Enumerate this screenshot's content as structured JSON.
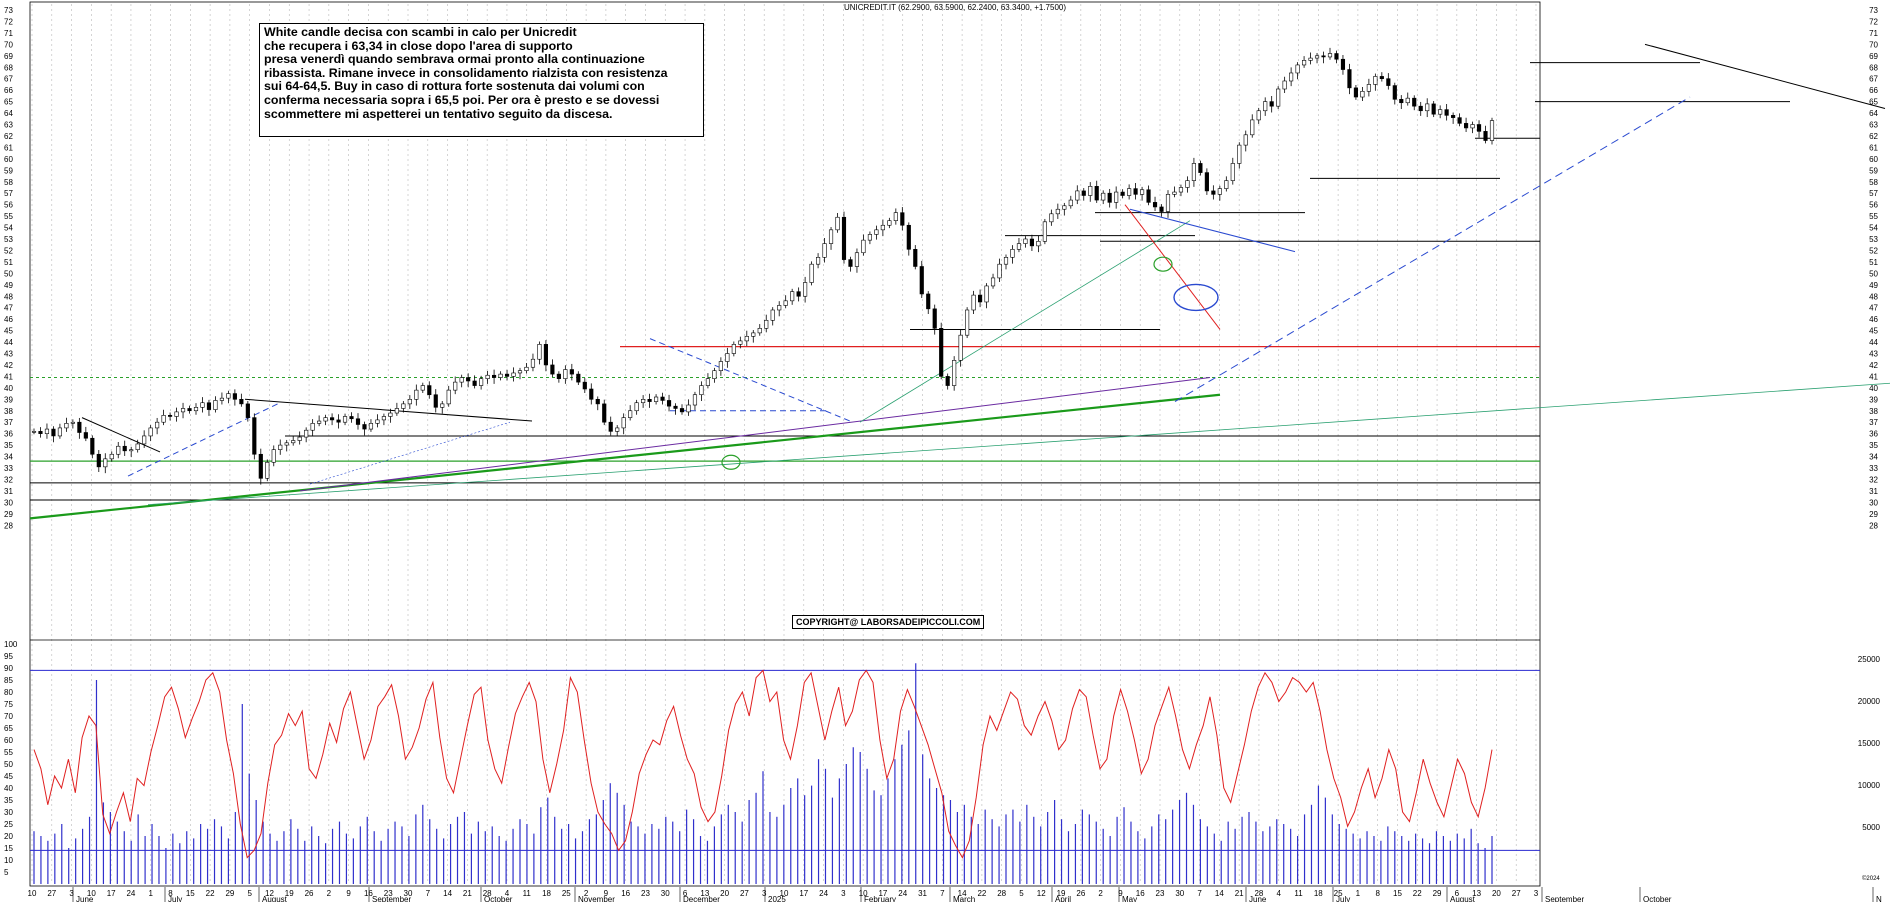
{
  "chart_data": [
    {
      "type": "candlestick",
      "title": "UNICREDIT.IT (62.2900, 63.5900, 62.2400, 63.3400, +1.7500)",
      "ylim": [
        28,
        73
      ],
      "y_ticks": [
        28,
        29,
        30,
        31,
        32,
        33,
        34,
        35,
        36,
        37,
        38,
        39,
        40,
        41,
        42,
        43,
        44,
        45,
        46,
        47,
        48,
        49,
        50,
        51,
        52,
        53,
        54,
        55,
        56,
        57,
        58,
        59,
        60,
        61,
        62,
        63,
        64,
        65,
        66,
        67,
        68,
        69,
        70,
        71,
        72,
        73
      ],
      "grid": "vertical dotted",
      "close_series": [
        36.2,
        36.0,
        36.4,
        35.8,
        36.5,
        36.9,
        37.0,
        36.1,
        35.6,
        34.2,
        33.1,
        33.8,
        34.2,
        34.9,
        34.5,
        34.6,
        35.1,
        35.8,
        36.5,
        37.0,
        37.6,
        37.5,
        37.9,
        38.2,
        38.0,
        38.3,
        38.7,
        38.1,
        38.9,
        39.1,
        39.5,
        39.0,
        38.6,
        37.4,
        34.2,
        32.1,
        33.5,
        34.6,
        35.0,
        35.2,
        35.4,
        35.7,
        36.3,
        36.9,
        37.1,
        37.4,
        37.2,
        37.0,
        37.5,
        37.3,
        36.8,
        36.4,
        36.9,
        37.2,
        37.5,
        37.8,
        38.2,
        38.6,
        39.0,
        39.8,
        40.2,
        39.4,
        38.3,
        38.6,
        39.8,
        40.5,
        40.9,
        40.6,
        40.2,
        40.8,
        41.1,
        40.9,
        41.2,
        41.0,
        41.3,
        41.5,
        41.8,
        42.5,
        43.8,
        42.0,
        41.2,
        40.8,
        41.6,
        41.2,
        40.5,
        39.9,
        39.0,
        38.6,
        37.0,
        36.2,
        36.5,
        37.4,
        38.0,
        38.7,
        39.0,
        38.8,
        39.2,
        38.9,
        38.4,
        38.2,
        37.9,
        38.5,
        39.4,
        40.2,
        40.8,
        41.5,
        42.3,
        43.0,
        43.8,
        44.1,
        44.5,
        44.8,
        45.2,
        45.9,
        46.8,
        47.2,
        47.6,
        48.4,
        48.0,
        49.2,
        50.8,
        51.4,
        52.6,
        53.8,
        54.9,
        51.2,
        50.6,
        51.8,
        52.9,
        53.4,
        53.8,
        54.2,
        54.6,
        55.3,
        54.2,
        52.1,
        50.6,
        48.2,
        46.9,
        45.2,
        41.0,
        40.2,
        42.4,
        44.6,
        46.8,
        48.1,
        47.5,
        48.9,
        49.6,
        50.8,
        51.4,
        52.1,
        52.6,
        53.0,
        52.4,
        52.8,
        54.5,
        55.2,
        55.6,
        55.9,
        56.4,
        57.2,
        56.8,
        57.6,
        56.4,
        57.0,
        56.2,
        57.1,
        56.8,
        57.4,
        56.9,
        57.3,
        56.2,
        55.8,
        55.4,
        56.9,
        57.1,
        57.5,
        58.1,
        59.6,
        58.8,
        57.2,
        56.9,
        57.4,
        58.1,
        59.6,
        61.2,
        62.1,
        63.4,
        64.2,
        65.0,
        64.6,
        66.1,
        66.8,
        67.5,
        68.2,
        68.6,
        68.8,
        69.0,
        68.9,
        69.2,
        68.7,
        67.8,
        66.2,
        65.4,
        65.9,
        66.5,
        67.2,
        67.0,
        66.4,
        65.2,
        64.9,
        65.3,
        64.6,
        64.2,
        64.8,
        63.9,
        64.3,
        63.8,
        63.6,
        63.1,
        62.7,
        63.0,
        62.4,
        61.6,
        63.34
      ]
    },
    {
      "type": "line+bar",
      "ylim_left": [
        0,
        100
      ],
      "y_ticks_left": [
        5,
        10,
        15,
        20,
        25,
        30,
        35,
        40,
        45,
        50,
        55,
        60,
        65,
        70,
        75,
        80,
        85,
        90,
        95,
        100
      ],
      "y_ticks_right": [
        "5000",
        "10000",
        "15000",
        "20000",
        "25000"
      ],
      "upper_band": 89,
      "lower_band": 14,
      "oscillator_color": "#e02020",
      "volume_color": "#3030cc",
      "oscillator": [
        56,
        48,
        33,
        45,
        40,
        52,
        38,
        61,
        70,
        66,
        29,
        21,
        30,
        38,
        26,
        44,
        41,
        55,
        66,
        78,
        82,
        73,
        61,
        69,
        76,
        85,
        88,
        80,
        60,
        46,
        25,
        11,
        14,
        21,
        42,
        58,
        62,
        71,
        66,
        72,
        48,
        44,
        54,
        67,
        59,
        73,
        80,
        66,
        52,
        60,
        74,
        78,
        83,
        70,
        52,
        57,
        65,
        77,
        84,
        61,
        44,
        38,
        52,
        66,
        79,
        82,
        60,
        48,
        42,
        57,
        71,
        78,
        84,
        76,
        52,
        38,
        50,
        64,
        86,
        80,
        60,
        42,
        30,
        25,
        21,
        14,
        18,
        30,
        46,
        54,
        60,
        58,
        68,
        74,
        62,
        52,
        46,
        32,
        26,
        30,
        45,
        64,
        75,
        80,
        70,
        86,
        89,
        76,
        80,
        60,
        52,
        66,
        84,
        88,
        74,
        60,
        72,
        82,
        66,
        72,
        85,
        89,
        84,
        60,
        44,
        52,
        72,
        81,
        74,
        66,
        58,
        48,
        38,
        22,
        16,
        11,
        18,
        36,
        58,
        70,
        64,
        72,
        80,
        77,
        66,
        62,
        70,
        76,
        68,
        56,
        60,
        73,
        81,
        78,
        62,
        48,
        52,
        70,
        81,
        72,
        60,
        46,
        52,
        66,
        74,
        82,
        70,
        56,
        48,
        58,
        66,
        78,
        62,
        40,
        34,
        46,
        58,
        72,
        82,
        88,
        84,
        76,
        80,
        86,
        84,
        80,
        84,
        72,
        56,
        44,
        36,
        24,
        30,
        40,
        48,
        36,
        44,
        56,
        48,
        30,
        26,
        38,
        52,
        42,
        34,
        28,
        40,
        52,
        46,
        34,
        28,
        40,
        56
      ],
      "volume": [
        22,
        20,
        18,
        21,
        25,
        15,
        19,
        23,
        28,
        85,
        34,
        30,
        26,
        22,
        18,
        29,
        20,
        25,
        20,
        15,
        21,
        17,
        22,
        19,
        25,
        23,
        27,
        24,
        19,
        30,
        75,
        46,
        35,
        26,
        21,
        18,
        22,
        27,
        23,
        18,
        24,
        20,
        17,
        23,
        26,
        21,
        19,
        24,
        28,
        22,
        18,
        23,
        26,
        24,
        20,
        29,
        33,
        27,
        23,
        19,
        25,
        28,
        30,
        21,
        26,
        22,
        24,
        20,
        18,
        23,
        27,
        25,
        21,
        32,
        36,
        28,
        23,
        25,
        19,
        22,
        27,
        29,
        35,
        42,
        38,
        33,
        26,
        24,
        21,
        25,
        23,
        28,
        26,
        22,
        31,
        27,
        20,
        18,
        24,
        29,
        33,
        30,
        26,
        35,
        38,
        47,
        30,
        28,
        33,
        40,
        44,
        37,
        41,
        52,
        48,
        36,
        44,
        50,
        57,
        55,
        48,
        39,
        37,
        44,
        52,
        58,
        64,
        92,
        54,
        44,
        40,
        37,
        35,
        30,
        33,
        28,
        25,
        31,
        27,
        24,
        29,
        31,
        26,
        33,
        28,
        24,
        30,
        35,
        27,
        22,
        25,
        31,
        29,
        26,
        23,
        20,
        28,
        32,
        26,
        22,
        19,
        24,
        29,
        27,
        31,
        35,
        38,
        33,
        27,
        24,
        21,
        18,
        26,
        23,
        28,
        30,
        26,
        22,
        24,
        27,
        25,
        23,
        20,
        29,
        33,
        41,
        36,
        29,
        25,
        23,
        21,
        19,
        22,
        20,
        18,
        24,
        22,
        20,
        18,
        21,
        19,
        17,
        22,
        20,
        18,
        21,
        19,
        23,
        17,
        15,
        20
      ]
    }
  ],
  "x_axis": {
    "day_ticks": [
      "10",
      "27",
      "3",
      "10",
      "17",
      "24",
      "1",
      "8",
      "15",
      "22",
      "29",
      "5",
      "12",
      "19",
      "26",
      "2",
      "9",
      "16",
      "23",
      "30",
      "7",
      "14",
      "21",
      "28",
      "4",
      "11",
      "18",
      "25",
      "2",
      "9",
      "16",
      "23",
      "30",
      "6",
      "13",
      "20",
      "27",
      "3",
      "10",
      "17",
      "24",
      "3",
      "10",
      "17",
      "24",
      "31",
      "7",
      "14",
      "22",
      "28",
      "5",
      "12",
      "19",
      "26",
      "2",
      "9",
      "16",
      "23",
      "30",
      "7",
      "14",
      "21",
      "28",
      "4",
      "11",
      "18",
      "25",
      "1",
      "8",
      "15",
      "22",
      "29",
      "6",
      "13",
      "20",
      "27",
      "3"
    ],
    "month_labels": [
      "June",
      "July",
      "August",
      "September",
      "October",
      "November",
      "December",
      "2025",
      "February",
      "March",
      "April",
      "May",
      "June",
      "July",
      "August",
      "September",
      "October",
      "N"
    ]
  },
  "annotation": {
    "lines": [
      "White candle decisa con scambi in calo per Unicredit",
      "che recupera i 63,34 in close dopo l'area di supporto",
      "presa venerdì quando sembrava ormai pronto alla continuazione",
      "ribassista.  Rimane invece in consolidamento rialzista con resistenza",
      "sui 64-64,5. Buy in caso di rottura forte sostenuta dai volumi con",
      "conferma necessaria sopra i 65,5 poi. Per ora è presto e se dovessi",
      "scommettere mi aspetterei un tentativo seguito da discesa."
    ]
  },
  "copyright": "COPYRIGHT@ LABORSADEIPICCOLI.COM",
  "corner_note": "©2024"
}
